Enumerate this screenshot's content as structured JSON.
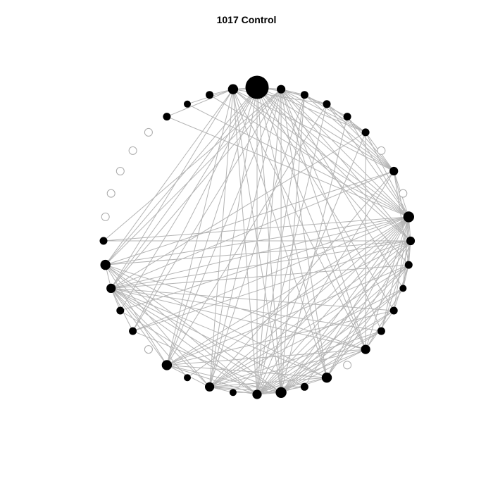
{
  "title": "1017 Control",
  "colors": {
    "edge": "#b4b4b4",
    "node_fill": "#000000",
    "inactive_stroke": "#aaaaaa",
    "background": "#ffffff"
  },
  "nodes": [
    {
      "id": 0,
      "size": 3.0,
      "active": true
    },
    {
      "id": 1,
      "size": 1.1,
      "active": true
    },
    {
      "id": 2,
      "size": 1.0,
      "active": true
    },
    {
      "id": 3,
      "size": 1.0,
      "active": true
    },
    {
      "id": 4,
      "size": 1.0,
      "active": true
    },
    {
      "id": 5,
      "size": 1.0,
      "active": true
    },
    {
      "id": 6,
      "size": 1.0,
      "active": false
    },
    {
      "id": 7,
      "size": 1.1,
      "active": true
    },
    {
      "id": 8,
      "size": 1.0,
      "active": false
    },
    {
      "id": 9,
      "size": 1.4,
      "active": true
    },
    {
      "id": 10,
      "size": 1.1,
      "active": true
    },
    {
      "id": 11,
      "size": 1.0,
      "active": true
    },
    {
      "id": 12,
      "size": 0.9,
      "active": true
    },
    {
      "id": 13,
      "size": 1.0,
      "active": true
    },
    {
      "id": 14,
      "size": 1.0,
      "active": true
    },
    {
      "id": 15,
      "size": 1.2,
      "active": true
    },
    {
      "id": 16,
      "size": 1.0,
      "active": false
    },
    {
      "id": 17,
      "size": 1.3,
      "active": true
    },
    {
      "id": 18,
      "size": 1.0,
      "active": true
    },
    {
      "id": 19,
      "size": 1.4,
      "active": true
    },
    {
      "id": 20,
      "size": 1.2,
      "active": true
    },
    {
      "id": 21,
      "size": 0.9,
      "active": true
    },
    {
      "id": 22,
      "size": 1.2,
      "active": true
    },
    {
      "id": 23,
      "size": 0.9,
      "active": true
    },
    {
      "id": 24,
      "size": 1.3,
      "active": true
    },
    {
      "id": 25,
      "size": 1.0,
      "active": false
    },
    {
      "id": 26,
      "size": 1.0,
      "active": true
    },
    {
      "id": 27,
      "size": 1.0,
      "active": true
    },
    {
      "id": 28,
      "size": 1.2,
      "active": true
    },
    {
      "id": 29,
      "size": 1.3,
      "active": true
    },
    {
      "id": 30,
      "size": 1.0,
      "active": true
    },
    {
      "id": 31,
      "size": 1.0,
      "active": false
    },
    {
      "id": 32,
      "size": 1.0,
      "active": false
    },
    {
      "id": 33,
      "size": 1.0,
      "active": false
    },
    {
      "id": 34,
      "size": 1.0,
      "active": false
    },
    {
      "id": 35,
      "size": 1.0,
      "active": false
    },
    {
      "id": 36,
      "size": 1.0,
      "active": true
    },
    {
      "id": 37,
      "size": 0.9,
      "active": true
    },
    {
      "id": 38,
      "size": 1.0,
      "active": true
    },
    {
      "id": 39,
      "size": 1.3,
      "active": true
    }
  ],
  "edges": [
    [
      39,
      38
    ],
    [
      39,
      37
    ],
    [
      39,
      36
    ],
    [
      39,
      0
    ],
    [
      39,
      1
    ],
    [
      39,
      28
    ],
    [
      39,
      20
    ],
    [
      39,
      22
    ],
    [
      39,
      24
    ],
    [
      39,
      19
    ],
    [
      39,
      29
    ],
    [
      39,
      17
    ],
    [
      39,
      15
    ],
    [
      39,
      9
    ],
    [
      39,
      10
    ],
    [
      39,
      7
    ],
    [
      39,
      3
    ],
    [
      0,
      1
    ],
    [
      0,
      2
    ],
    [
      0,
      5
    ],
    [
      0,
      7
    ],
    [
      0,
      9
    ],
    [
      0,
      10
    ],
    [
      0,
      11
    ],
    [
      0,
      13
    ],
    [
      0,
      15
    ],
    [
      0,
      17
    ],
    [
      0,
      19
    ],
    [
      0,
      20
    ],
    [
      0,
      22
    ],
    [
      0,
      24
    ],
    [
      0,
      26
    ],
    [
      0,
      27
    ],
    [
      0,
      28
    ],
    [
      0,
      29
    ],
    [
      1,
      2
    ],
    [
      1,
      3
    ],
    [
      1,
      5
    ],
    [
      1,
      7
    ],
    [
      1,
      9
    ],
    [
      1,
      10
    ],
    [
      1,
      12
    ],
    [
      1,
      14
    ],
    [
      1,
      15
    ],
    [
      1,
      17
    ],
    [
      1,
      19
    ],
    [
      1,
      20
    ],
    [
      1,
      22
    ],
    [
      1,
      24
    ],
    [
      1,
      26
    ],
    [
      1,
      28
    ],
    [
      1,
      29
    ],
    [
      1,
      30
    ],
    [
      2,
      4
    ],
    [
      2,
      5
    ],
    [
      2,
      7
    ],
    [
      2,
      19
    ],
    [
      2,
      20
    ],
    [
      2,
      22
    ],
    [
      3,
      5
    ],
    [
      3,
      7
    ],
    [
      3,
      9
    ],
    [
      3,
      24
    ],
    [
      3,
      20
    ],
    [
      4,
      7
    ],
    [
      4,
      9
    ],
    [
      4,
      19
    ],
    [
      5,
      7
    ],
    [
      5,
      9
    ],
    [
      5,
      28
    ],
    [
      5,
      20
    ],
    [
      5,
      15
    ],
    [
      7,
      9
    ],
    [
      7,
      10
    ],
    [
      7,
      29
    ],
    [
      7,
      22
    ],
    [
      7,
      28
    ],
    [
      7,
      20
    ],
    [
      7,
      11
    ],
    [
      9,
      10
    ],
    [
      9,
      11
    ],
    [
      9,
      12
    ],
    [
      9,
      13
    ],
    [
      9,
      14
    ],
    [
      9,
      15
    ],
    [
      9,
      17
    ],
    [
      9,
      18
    ],
    [
      9,
      19
    ],
    [
      9,
      20
    ],
    [
      9,
      21
    ],
    [
      9,
      22
    ],
    [
      9,
      23
    ],
    [
      9,
      24
    ],
    [
      9,
      26
    ],
    [
      9,
      27
    ],
    [
      9,
      28
    ],
    [
      9,
      29
    ],
    [
      9,
      30
    ],
    [
      9,
      36
    ],
    [
      9,
      37
    ],
    [
      9,
      38
    ],
    [
      10,
      11
    ],
    [
      10,
      12
    ],
    [
      10,
      14
    ],
    [
      10,
      17
    ],
    [
      10,
      19
    ],
    [
      10,
      20
    ],
    [
      10,
      22
    ],
    [
      10,
      24
    ],
    [
      10,
      26
    ],
    [
      10,
      28
    ],
    [
      10,
      29
    ],
    [
      10,
      30
    ],
    [
      11,
      12
    ],
    [
      11,
      13
    ],
    [
      11,
      17
    ],
    [
      11,
      19
    ],
    [
      11,
      20
    ],
    [
      11,
      22
    ],
    [
      11,
      24
    ],
    [
      11,
      28
    ],
    [
      12,
      15
    ],
    [
      12,
      19
    ],
    [
      12,
      20
    ],
    [
      12,
      22
    ],
    [
      13,
      15
    ],
    [
      13,
      19
    ],
    [
      13,
      20
    ],
    [
      13,
      24
    ],
    [
      13,
      28
    ],
    [
      14,
      19
    ],
    [
      14,
      20
    ],
    [
      14,
      22
    ],
    [
      14,
      28
    ],
    [
      15,
      19
    ],
    [
      15,
      20
    ],
    [
      15,
      22
    ],
    [
      15,
      24
    ],
    [
      15,
      28
    ],
    [
      15,
      29
    ],
    [
      17,
      19
    ],
    [
      17,
      20
    ],
    [
      17,
      22
    ],
    [
      17,
      24
    ],
    [
      17,
      28
    ],
    [
      17,
      29
    ],
    [
      18,
      20
    ],
    [
      18,
      22
    ],
    [
      18,
      28
    ],
    [
      19,
      20
    ],
    [
      19,
      21
    ],
    [
      19,
      22
    ],
    [
      19,
      24
    ],
    [
      19,
      26
    ],
    [
      19,
      28
    ],
    [
      19,
      29
    ],
    [
      20,
      22
    ],
    [
      20,
      24
    ],
    [
      20,
      27
    ],
    [
      20,
      28
    ],
    [
      20,
      29
    ],
    [
      21,
      22
    ],
    [
      22,
      24
    ],
    [
      22,
      28
    ],
    [
      22,
      29
    ],
    [
      23,
      28
    ],
    [
      24,
      28
    ],
    [
      24,
      29
    ],
    [
      26,
      28
    ],
    [
      27,
      28
    ],
    [
      28,
      29
    ]
  ]
}
